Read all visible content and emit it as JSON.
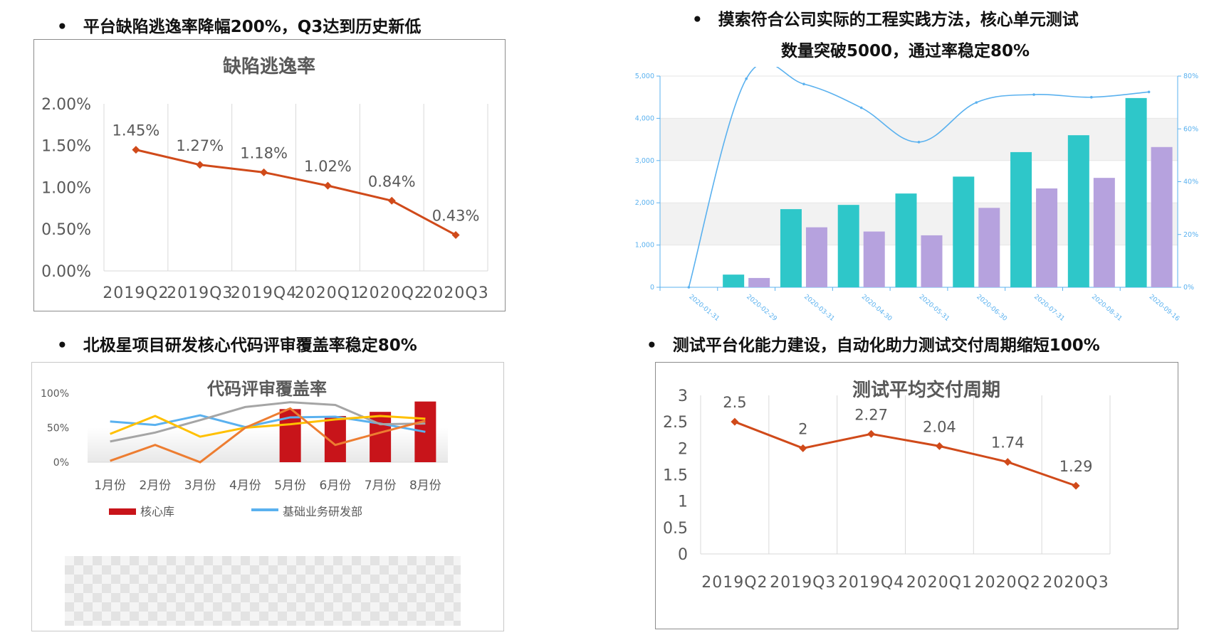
{
  "headings": {
    "top_left": "平台缺陷逃逸率降幅200%，Q3达到历史新低",
    "top_right_line1": "摸索符合公司实际的工程实践方法，核心单元测试",
    "top_right_line2": "数量突破5000，通过率稳定80%",
    "bottom_left": "北极星项目研发核心代码评审覆盖率稳定80%",
    "bottom_right": "测试平台化能力建设，自动化助力测试交付周期缩短100%",
    "bullet": "•"
  },
  "colors": {
    "red_line": "#d04a1a",
    "teal": "#2ec7c9",
    "lavender": "#b6a2de",
    "blue_line": "#5ab1ef",
    "bar_red": "#c8141a",
    "gray_line": "#a5a5a5",
    "yellow_line": "#ffc000",
    "orange_line": "#ed7d31",
    "axis_blue": "#5ab1ef"
  },
  "chart_data": [
    {
      "id": "defect_escape",
      "type": "line",
      "title": "缺陷逃逸率",
      "categories": [
        "2019Q2",
        "2019Q3",
        "2019Q4",
        "2020Q1",
        "2020Q2",
        "2020Q3"
      ],
      "values": [
        1.45,
        1.27,
        1.18,
        1.02,
        0.84,
        0.43
      ],
      "data_labels": [
        "1.45%",
        "1.27%",
        "1.18%",
        "1.02%",
        "0.84%",
        "0.43%"
      ],
      "y_ticks": [
        "2.00%",
        "1.50%",
        "1.00%",
        "0.50%",
        "0.00%"
      ],
      "ylim": [
        0,
        2
      ],
      "grid": true
    },
    {
      "id": "unit_tests",
      "type": "bar",
      "dates": [
        "2020-01-31",
        "2020-02-29",
        "2020-03-31",
        "2020-04-30",
        "2020-05-31",
        "2020-06-30",
        "2020-07-31",
        "2020-08-31",
        "2020-09-16"
      ],
      "series": [
        {
          "type": "bar",
          "values": [
            0,
            300,
            1850,
            1950,
            2220,
            2620,
            3200,
            3600,
            4480
          ]
        },
        {
          "type": "bar",
          "values": [
            0,
            220,
            1420,
            1320,
            1230,
            1880,
            2340,
            2590,
            3320
          ]
        },
        {
          "type": "line",
          "axis": "right",
          "values": [
            0,
            79,
            77,
            68,
            55,
            70,
            73,
            72,
            74
          ]
        }
      ],
      "left_ticks": [
        "5,000",
        "4,000",
        "3,000",
        "2,000",
        "1,000",
        "0"
      ],
      "right_ticks": [
        "80%",
        "60%",
        "40%",
        "20%",
        "0%"
      ],
      "ylim_left": [
        0,
        5000
      ],
      "ylim_right": [
        0,
        80
      ]
    },
    {
      "id": "code_review",
      "type": "bar",
      "title": "代码评审覆盖率",
      "categories": [
        "1月份",
        "2月份",
        "3月份",
        "4月份",
        "5月份",
        "6月份",
        "7月份",
        "8月份"
      ],
      "series": [
        {
          "name": "核心库",
          "type": "bar",
          "values": [
            null,
            null,
            null,
            null,
            77,
            67,
            73,
            88
          ]
        },
        {
          "name": "基础业务研发部",
          "type": "line",
          "values": [
            59,
            54,
            68,
            51,
            65,
            66,
            56,
            44
          ]
        },
        {
          "type": "line",
          "values": [
            30,
            43,
            61,
            80,
            87,
            83,
            55,
            56
          ]
        },
        {
          "type": "line",
          "values": [
            41,
            67,
            37,
            50,
            55,
            62,
            67,
            63
          ]
        },
        {
          "type": "line",
          "values": [
            2,
            25,
            0,
            50,
            78,
            25,
            43,
            60
          ]
        }
      ],
      "y_ticks": [
        "100%",
        "50%",
        "0%"
      ],
      "ylim": [
        0,
        100
      ]
    },
    {
      "id": "delivery_cycle",
      "type": "line",
      "title": "测试平均交付周期",
      "categories": [
        "2019Q2",
        "2019Q3",
        "2019Q4",
        "2020Q1",
        "2020Q2",
        "2020Q3"
      ],
      "values": [
        2.5,
        2,
        2.27,
        2.04,
        1.74,
        1.29
      ],
      "data_labels": [
        "2.5",
        "2",
        "2.27",
        "2.04",
        "1.74",
        "1.29"
      ],
      "y_ticks": [
        "3",
        "2.5",
        "2",
        "1.5",
        "1",
        "0.5",
        "0"
      ],
      "ylim": [
        0,
        3
      ],
      "grid": true
    }
  ]
}
